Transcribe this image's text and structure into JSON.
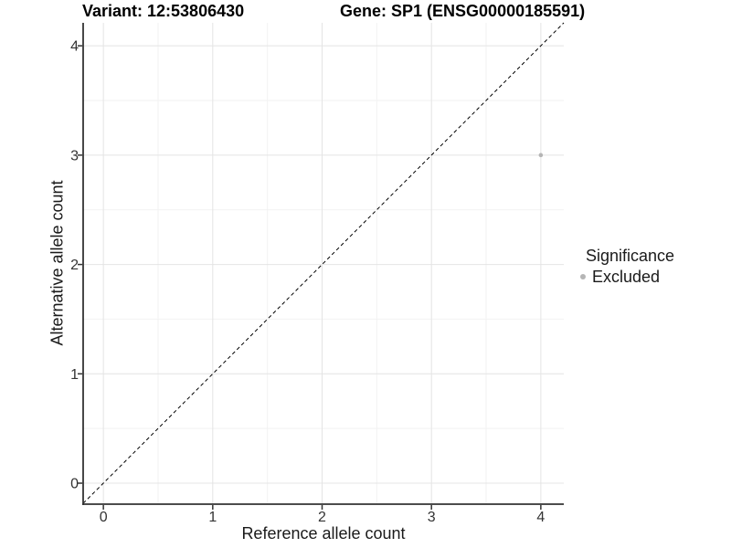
{
  "chart_data": {
    "type": "scatter",
    "title_left": "Variant: 12:53806430",
    "title_right": "Gene: SP1 (ENSG00000185591)",
    "xlabel": "Reference allele count",
    "ylabel": "Alternative allele count",
    "xlim": [
      -0.185,
      4.21
    ],
    "ylim": [
      -0.192,
      4.21
    ],
    "xticks": [
      0,
      1,
      2,
      3,
      4
    ],
    "yticks": [
      0,
      1,
      2,
      3,
      4
    ],
    "xminor": [
      0.5,
      1.5,
      2.5,
      3.5
    ],
    "yminor": [
      0.5,
      1.5,
      2.5,
      3.5
    ],
    "grid": "major+minor",
    "identity_line": {
      "slope": 1,
      "intercept": 0,
      "style": "dashed",
      "color": "#000000"
    },
    "series": [
      {
        "name": "Excluded",
        "color": "#b5b5b5",
        "points": [
          {
            "x": 4,
            "y": 3
          }
        ]
      }
    ],
    "legend": {
      "title": "Significance",
      "position": "right",
      "entries": [
        {
          "label": "Excluded",
          "color": "#b5b5b5"
        }
      ]
    },
    "colors": {
      "background": "#ffffff",
      "grid_major": "#e4e4e4",
      "grid_minor": "#f2f2f2",
      "axis_line": "#333333",
      "tick_text": "#333333",
      "point": "#b5b5b5"
    }
  }
}
